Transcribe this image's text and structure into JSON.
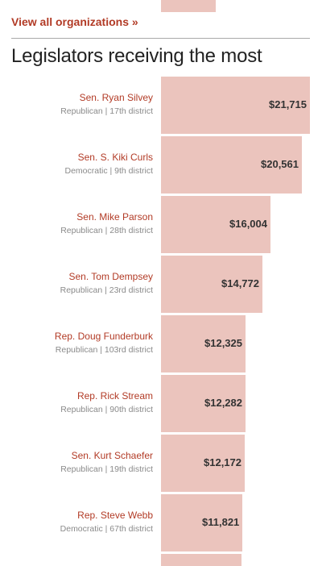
{
  "links": {
    "view_all": "View all organizations »"
  },
  "section": {
    "title": "Legislators receiving the most"
  },
  "colors": {
    "bar": "#ebc4bd",
    "accent": "#b23b26"
  },
  "chart_data": {
    "type": "bar",
    "orientation": "horizontal",
    "title": "Legislators receiving the most",
    "xlabel": "",
    "ylabel": "",
    "grid": false,
    "xlim": [
      0,
      21715
    ],
    "categories": [
      "Sen. Ryan Silvey",
      "Sen. S. Kiki Curls",
      "Sen. Mike Parson",
      "Sen. Tom Dempsey",
      "Rep. Doug Funderburk",
      "Rep. Rick Stream",
      "Sen. Kurt Schaefer",
      "Rep. Steve Webb"
    ],
    "subtitles": [
      "Republican | 17th district",
      "Democratic | 9th district",
      "Republican | 28th district",
      "Republican | 23rd district",
      "Republican | 103rd district",
      "Republican | 90th district",
      "Republican | 19th district",
      "Democratic | 67th district"
    ],
    "values": [
      21715,
      20561,
      16004,
      14772,
      12325,
      12282,
      12172,
      11821
    ],
    "value_labels": [
      "$21,715",
      "$20,561",
      "$16,004",
      "$14,772",
      "$12,325",
      "$12,282",
      "$12,172",
      "$11,821"
    ]
  }
}
